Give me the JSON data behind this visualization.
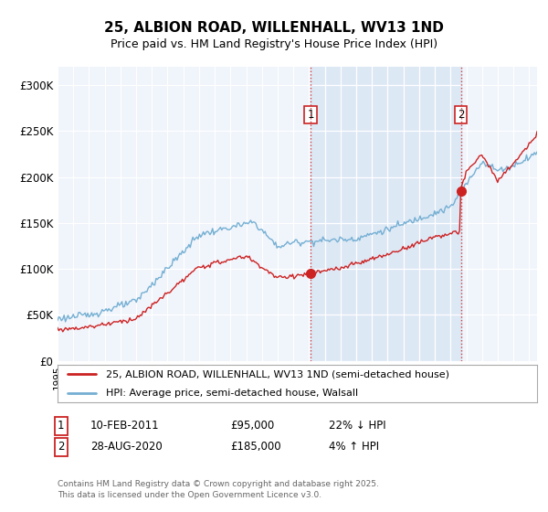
{
  "title_line1": "25, ALBION ROAD, WILLENHALL, WV13 1ND",
  "title_line2": "Price paid vs. HM Land Registry's House Price Index (HPI)",
  "ylim": [
    0,
    320000
  ],
  "yticks": [
    0,
    50000,
    100000,
    150000,
    200000,
    250000,
    300000
  ],
  "ytick_labels": [
    "£0",
    "£50K",
    "£100K",
    "£150K",
    "£200K",
    "£250K",
    "£300K"
  ],
  "xlim_start": 1995.0,
  "xlim_end": 2025.5,
  "hpi_color": "#74afd3",
  "price_color": "#cc2222",
  "legend_entry1": "25, ALBION ROAD, WILLENHALL, WV13 1ND (semi-detached house)",
  "legend_entry2": "HPI: Average price, semi-detached house, Walsall",
  "annotation1_label": "1",
  "annotation1_date": "10-FEB-2011",
  "annotation1_price": "£95,000",
  "annotation1_hpi": "22% ↓ HPI",
  "annotation2_label": "2",
  "annotation2_date": "28-AUG-2020",
  "annotation2_price": "£185,000",
  "annotation2_hpi": "4% ↑ HPI",
  "footer": "Contains HM Land Registry data © Crown copyright and database right 2025.\nThis data is licensed under the Open Government Licence v3.0.",
  "vline1_x": 2011.1,
  "vline2_x": 2020.65,
  "sale1_y": 95000,
  "sale2_y": 185000,
  "background_color": "#ffffff",
  "plot_bg_color": "#f0f4fb",
  "shade_color": "#dde8f5"
}
